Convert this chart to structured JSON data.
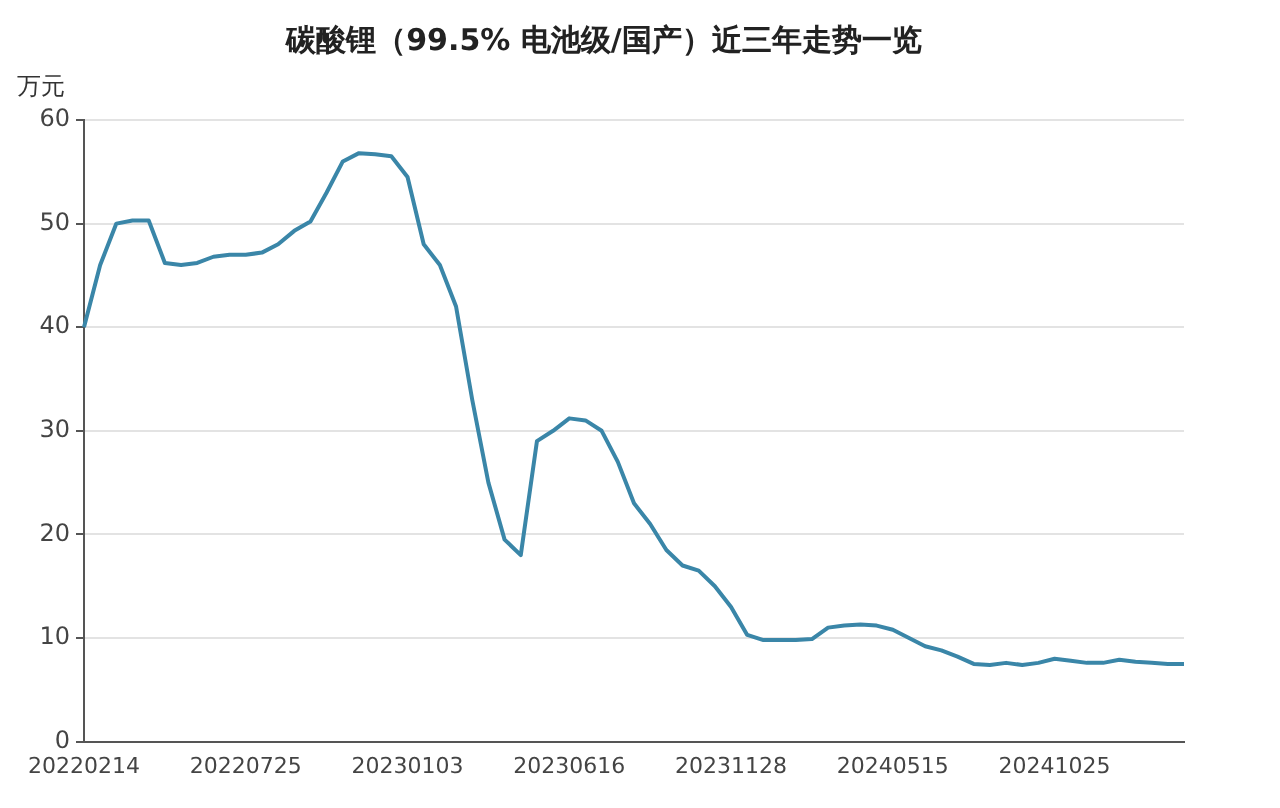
{
  "chart_data": {
    "type": "line",
    "title": "碳酸锂（99.5% 电池级/国产）近三年走势一览",
    "ylabel": "万元",
    "categories": [
      "20220214",
      null,
      null,
      null,
      null,
      null,
      null,
      null,
      null,
      null,
      "20220725",
      null,
      null,
      null,
      null,
      null,
      null,
      null,
      null,
      null,
      "20230103",
      null,
      null,
      null,
      null,
      null,
      null,
      null,
      null,
      null,
      "20230616",
      null,
      null,
      null,
      null,
      null,
      null,
      null,
      null,
      null,
      "20231128",
      null,
      null,
      null,
      null,
      null,
      null,
      null,
      null,
      null,
      "20240515",
      null,
      null,
      null,
      null,
      null,
      null,
      null,
      null,
      null,
      "20241025",
      null,
      null,
      null,
      null,
      null,
      null,
      null,
      null
    ],
    "series": [
      {
        "color": "#3a86a8",
        "values": [
          40,
          46,
          50,
          50.3,
          50.3,
          46.2,
          46,
          46.2,
          46.8,
          47,
          47,
          47.2,
          48,
          49.3,
          50.2,
          53,
          56,
          56.8,
          56.7,
          56.5,
          54.5,
          48,
          46,
          42,
          33,
          25,
          19.5,
          18,
          29,
          30,
          31.2,
          31,
          30,
          27,
          23,
          21,
          18.5,
          17,
          16.5,
          15,
          13,
          10.3,
          9.8,
          9.8,
          9.8,
          9.9,
          11,
          11.2,
          11.3,
          11.2,
          10.8,
          10,
          9.2,
          8.8,
          8.2,
          7.5,
          7.4,
          7.6,
          7.4,
          7.6,
          8,
          7.8,
          7.6,
          7.6,
          7.9,
          7.7,
          7.6,
          7.5,
          7.5
        ]
      }
    ],
    "ylim": [
      0,
      60
    ],
    "yticks": [
      0,
      10,
      20,
      30,
      40,
      50,
      60
    ],
    "grid": "y",
    "legend": false,
    "marker": "none",
    "line_style": "solid"
  }
}
